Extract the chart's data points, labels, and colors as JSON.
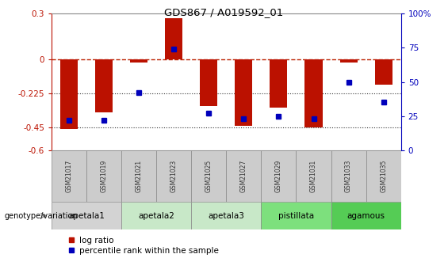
{
  "title": "GDS867 / A019592_01",
  "samples": [
    "GSM21017",
    "GSM21019",
    "GSM21021",
    "GSM21023",
    "GSM21025",
    "GSM21027",
    "GSM21029",
    "GSM21031",
    "GSM21033",
    "GSM21035"
  ],
  "log_ratio": [
    -0.46,
    -0.35,
    -0.02,
    0.27,
    -0.31,
    -0.44,
    -0.32,
    -0.45,
    -0.02,
    -0.17
  ],
  "percentile_rank": [
    22,
    22,
    42,
    74,
    27,
    23,
    25,
    23,
    50,
    35
  ],
  "ylim_left": [
    -0.6,
    0.3
  ],
  "ylim_right": [
    0,
    100
  ],
  "yticks_left": [
    0.3,
    0.0,
    -0.225,
    -0.45,
    -0.6
  ],
  "yticks_right": [
    100,
    75,
    50,
    25,
    0
  ],
  "groups": [
    {
      "label": "apetala1",
      "indices": [
        0,
        1
      ],
      "color": "#d3d3d3"
    },
    {
      "label": "apetala2",
      "indices": [
        2,
        3
      ],
      "color": "#c8e8c8"
    },
    {
      "label": "apetala3",
      "indices": [
        4,
        5
      ],
      "color": "#c8e8c8"
    },
    {
      "label": "pistillata",
      "indices": [
        6,
        7
      ],
      "color": "#7de07d"
    },
    {
      "label": "agamous",
      "indices": [
        8,
        9
      ],
      "color": "#55cc55"
    }
  ],
  "bar_color": "#bb1100",
  "dot_color": "#0000bb",
  "hline_color": "#bb2200",
  "dotline_color": "#333333",
  "sample_box_color": "#cccccc",
  "sample_text_color": "#333333",
  "bar_width": 0.5
}
